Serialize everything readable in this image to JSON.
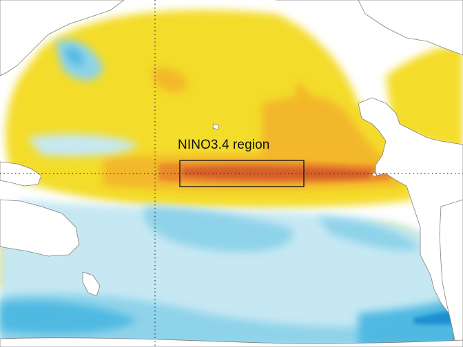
{
  "map": {
    "region_label": "NINO3.4 region",
    "colors": {
      "land": "#ffffff",
      "neutral": "#ffffff",
      "warm_light": "#f6ea8c",
      "warm": "#f4dc2c",
      "warm_strong": "#f3b72a",
      "hot": "#e98a2b",
      "hottest": "#d4602a",
      "cool_light": "#c6e8f2",
      "cool": "#8fd3ea",
      "cold": "#4fb9e2",
      "coldest": "#1b8fd3",
      "coastline": "#7f7f7f",
      "reference_line": "#333333",
      "region_box": "#1a1a1a"
    }
  }
}
